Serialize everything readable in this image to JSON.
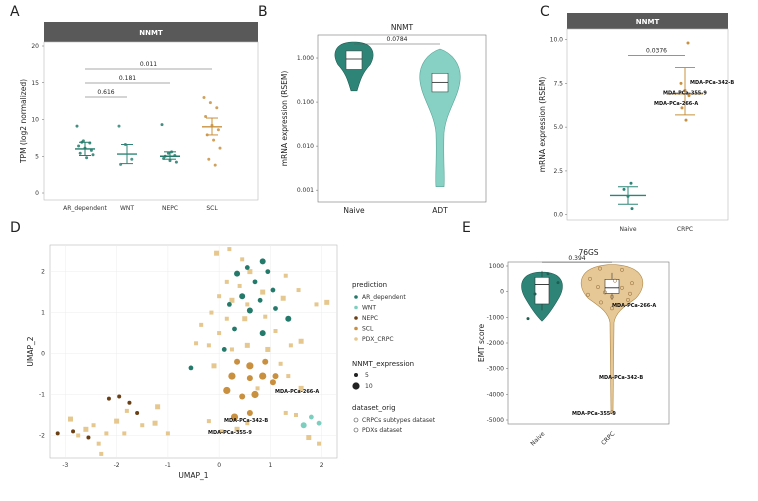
{
  "panels": {
    "A": "A",
    "B": "B",
    "C": "C",
    "D": "D",
    "E": "E"
  },
  "colors": {
    "AR_dependent": "#237a6b",
    "WNT": "#7ccfbe",
    "NEPC": "#6b3f14",
    "SCL": "#c8903f",
    "PDX_CRPC": "#e6c78e",
    "naive": "#2e8577",
    "adt": "#86d1c3",
    "crpc_fill": "#e6c896",
    "strip": "#595959"
  },
  "chart_data": [
    {
      "id": "A",
      "type": "scatter",
      "strip_title": "NNMT",
      "ylabel": "TPM (log2 normalized)",
      "ylim": [
        0,
        20
      ],
      "yticks": [
        "0",
        "5",
        "10",
        "15",
        "20"
      ],
      "categories": [
        "AR_dependent",
        "WNT",
        "NEPC",
        "SCL"
      ],
      "series": [
        {
          "name": "AR_dependent",
          "mean": 6.0,
          "lo": 5.1,
          "hi": 6.9,
          "points": [
            9.1,
            7.1,
            6.8,
            6.4,
            6.1,
            5.8,
            5.4,
            4.8,
            5.2,
            6.9
          ]
        },
        {
          "name": "WNT",
          "mean": 5.3,
          "lo": 4.0,
          "hi": 6.6,
          "points": [
            9.1,
            6.6,
            4.6,
            3.9
          ]
        },
        {
          "name": "NEPC",
          "mean": 5.0,
          "lo": 4.6,
          "hi": 5.6,
          "points": [
            9.3,
            5.4,
            5.1,
            4.7,
            4.4,
            4.2,
            5.0,
            5.6
          ]
        },
        {
          "name": "SCL",
          "mean": 9.0,
          "lo": 7.9,
          "hi": 10.2,
          "points": [
            13.0,
            12.3,
            11.6,
            10.4,
            9.2,
            8.6,
            7.9,
            7.2,
            6.1,
            4.6,
            3.8
          ]
        }
      ],
      "comparisons": [
        {
          "from": "AR_dependent",
          "to": "WNT",
          "p": "0.616"
        },
        {
          "from": "AR_dependent",
          "to": "NEPC",
          "p": "0.181"
        },
        {
          "from": "AR_dependent",
          "to": "SCL",
          "p": "0.011"
        }
      ]
    },
    {
      "id": "B",
      "type": "violin",
      "title": "NNMT",
      "ylabel": "mRNA expression (RSEM)",
      "yscale": "log10",
      "ylim": [
        0.0007,
        3
      ],
      "yticks": [
        "0.001",
        "0.010",
        "0.100",
        "1.000"
      ],
      "categories": [
        "Naive",
        "ADT"
      ],
      "comparisons": [
        {
          "from": "Naive",
          "to": "ADT",
          "p": "0.0784"
        }
      ],
      "box": [
        {
          "q1": 0.55,
          "median": 0.95,
          "q3": 1.45
        },
        {
          "q1": 0.17,
          "median": 0.28,
          "q3": 0.45
        }
      ]
    },
    {
      "id": "C",
      "type": "scatter",
      "strip_title": "NNMT",
      "ylabel": "mRNA expression (RSEM)",
      "ylim": [
        -0.3,
        10.6
      ],
      "yticks": [
        "0.0",
        "2.5",
        "5.0",
        "7.5",
        "10.0"
      ],
      "categories": [
        "Naive",
        "CRPC"
      ],
      "series": [
        {
          "name": "Naive",
          "mean": 1.1,
          "lo": 0.6,
          "hi": 1.6,
          "points": [
            1.8,
            1.45,
            1.05,
            0.35
          ]
        },
        {
          "name": "CRPC",
          "mean": 6.9,
          "lo": 5.7,
          "hi": 8.4,
          "points": [
            9.8,
            7.5,
            7.1,
            6.8,
            6.1,
            5.4
          ]
        }
      ],
      "comparisons": [
        {
          "from": "Naive",
          "to": "CRPC",
          "p": "0.0376"
        }
      ],
      "annotations": [
        "MDA-PCa-342-B",
        "MDA-PCa-355-9",
        "MDA-PCa-266-A"
      ]
    },
    {
      "id": "D",
      "type": "scatter",
      "xlabel": "UMAP_1",
      "ylabel": "UMAP_2",
      "xlim": [
        -3.3,
        2.3
      ],
      "ylim": [
        -2.55,
        2.65
      ],
      "xticks": [
        "-3",
        "-2",
        "-1",
        "0",
        "1",
        "2"
      ],
      "yticks": [
        "-2",
        "-1",
        "0",
        "1",
        "2"
      ],
      "legend_prediction_title": "prediction",
      "legend_size_title": "NNMT_expression",
      "legend_size_values": [
        "5",
        "10"
      ],
      "legend_shape_title": "dataset_orig",
      "legend_shape_entries": [
        "CRPCs subtypes dataset",
        "PDXs dataset"
      ],
      "annotations": [
        "MDA-PCa-266-A",
        "MDA-PCa-342-B",
        "MDA-PCa-355-9"
      ],
      "points": [
        {
          "cls": "AR_dependent",
          "x": 0.85,
          "y": 2.25
        },
        {
          "cls": "AR_dependent",
          "x": 0.55,
          "y": 2.1
        },
        {
          "cls": "AR_dependent",
          "x": 0.95,
          "y": 2.0
        },
        {
          "cls": "AR_dependent",
          "x": 0.35,
          "y": 1.95
        },
        {
          "cls": "AR_dependent",
          "x": 0.7,
          "y": 1.75
        },
        {
          "cls": "AR_dependent",
          "x": 1.05,
          "y": 1.55
        },
        {
          "cls": "AR_dependent",
          "x": 0.45,
          "y": 1.4
        },
        {
          "cls": "AR_dependent",
          "x": 0.8,
          "y": 1.3
        },
        {
          "cls": "AR_dependent",
          "x": 0.2,
          "y": 1.2
        },
        {
          "cls": "AR_dependent",
          "x": 0.6,
          "y": 1.05
        },
        {
          "cls": "AR_dependent",
          "x": 1.1,
          "y": 1.1
        },
        {
          "cls": "AR_dependent",
          "x": 0.3,
          "y": 0.6
        },
        {
          "cls": "AR_dependent",
          "x": 0.85,
          "y": 0.5
        },
        {
          "cls": "AR_dependent",
          "x": 0.1,
          "y": 0.1
        },
        {
          "cls": "AR_dependent",
          "x": -0.55,
          "y": -0.35
        },
        {
          "cls": "AR_dependent",
          "x": 1.35,
          "y": 0.85
        },
        {
          "cls": "WNT",
          "x": 1.8,
          "y": -1.55
        },
        {
          "cls": "WNT",
          "x": 1.95,
          "y": -1.7
        },
        {
          "cls": "WNT",
          "x": 1.65,
          "y": -1.75
        },
        {
          "cls": "NEPC",
          "x": -3.15,
          "y": -1.95
        },
        {
          "cls": "NEPC",
          "x": -2.85,
          "y": -1.9
        },
        {
          "cls": "NEPC",
          "x": -2.55,
          "y": -2.05
        },
        {
          "cls": "NEPC",
          "x": -2.15,
          "y": -1.1
        },
        {
          "cls": "NEPC",
          "x": -1.95,
          "y": -1.05
        },
        {
          "cls": "NEPC",
          "x": -1.75,
          "y": -1.2
        },
        {
          "cls": "NEPC",
          "x": -1.6,
          "y": -1.45
        },
        {
          "cls": "SCL",
          "x": 0.35,
          "y": -0.2
        },
        {
          "cls": "SCL",
          "x": 0.6,
          "y": -0.3
        },
        {
          "cls": "SCL",
          "x": 0.9,
          "y": -0.2
        },
        {
          "cls": "SCL",
          "x": 0.25,
          "y": -0.55
        },
        {
          "cls": "SCL",
          "x": 0.6,
          "y": -0.6
        },
        {
          "cls": "SCL",
          "x": 0.85,
          "y": -0.55
        },
        {
          "cls": "SCL",
          "x": 1.1,
          "y": -0.55
        },
        {
          "cls": "SCL",
          "x": 0.15,
          "y": -0.9
        },
        {
          "cls": "SCL",
          "x": 0.45,
          "y": -1.05
        },
        {
          "cls": "SCL",
          "x": 0.7,
          "y": -1.0
        },
        {
          "cls": "SCL",
          "x": 1.05,
          "y": -0.7
        },
        {
          "cls": "SCL",
          "x": 0.3,
          "y": -1.55
        },
        {
          "cls": "SCL",
          "x": 0.6,
          "y": -1.45
        }
      ],
      "pdx_squares": [
        [
          -0.05,
          2.45
        ],
        [
          0.2,
          2.55
        ],
        [
          0.45,
          2.3
        ],
        [
          0.6,
          2.0
        ],
        [
          0.15,
          1.75
        ],
        [
          0.4,
          1.65
        ],
        [
          0.85,
          1.5
        ],
        [
          1.3,
          1.9
        ],
        [
          0.0,
          1.4
        ],
        [
          0.25,
          1.3
        ],
        [
          0.55,
          1.2
        ],
        [
          0.9,
          0.9
        ],
        [
          1.25,
          1.35
        ],
        [
          1.55,
          1.55
        ],
        [
          1.9,
          1.2
        ],
        [
          2.1,
          1.25
        ],
        [
          -0.15,
          1.0
        ],
        [
          0.15,
          0.85
        ],
        [
          0.5,
          0.85
        ],
        [
          1.1,
          0.55
        ],
        [
          1.4,
          0.2
        ],
        [
          1.6,
          0.3
        ],
        [
          -0.35,
          0.7
        ],
        [
          0.0,
          0.5
        ],
        [
          0.55,
          0.2
        ],
        [
          -0.2,
          0.2
        ],
        [
          -0.45,
          0.25
        ],
        [
          0.95,
          0.1
        ],
        [
          0.25,
          0.1
        ],
        [
          1.2,
          -0.25
        ],
        [
          -0.1,
          -0.3
        ],
        [
          0.75,
          -0.85
        ],
        [
          1.35,
          -0.55
        ],
        [
          1.6,
          -0.85
        ],
        [
          1.3,
          -1.45
        ],
        [
          1.5,
          -1.5
        ],
        [
          1.75,
          -2.05
        ],
        [
          1.95,
          -2.2
        ],
        [
          0.05,
          -1.9
        ],
        [
          0.35,
          -1.85
        ],
        [
          0.55,
          -1.7
        ],
        [
          -0.2,
          -1.65
        ],
        [
          -1.2,
          -1.3
        ],
        [
          -1.5,
          -1.75
        ],
        [
          -1.8,
          -1.4
        ],
        [
          -2.0,
          -1.65
        ],
        [
          -2.2,
          -1.95
        ],
        [
          -2.45,
          -1.75
        ],
        [
          -2.6,
          -1.85
        ],
        [
          -2.35,
          -2.2
        ],
        [
          -2.75,
          -2.0
        ],
        [
          -2.9,
          -1.6
        ],
        [
          -2.3,
          -2.45
        ],
        [
          -1.85,
          -1.95
        ],
        [
          -1.25,
          -1.7
        ],
        [
          -1.0,
          -1.95
        ]
      ]
    },
    {
      "id": "E",
      "type": "violin",
      "title": "76GS",
      "ylabel": "EMT score",
      "ylim": [
        -5000,
        1000
      ],
      "yticks": [
        "1000",
        "0",
        "-1000",
        "-2000",
        "-3000",
        "-4000",
        "-5000"
      ],
      "categories": [
        "Naive",
        "CRPC"
      ],
      "comparisons": [
        {
          "from": "Naive",
          "to": "CRPC",
          "p": "0.394"
        }
      ],
      "box": [
        {
          "q1": -480,
          "median": 280,
          "q3": 560
        },
        {
          "q1": -70,
          "median": 150,
          "q3": 480
        }
      ],
      "annotations": [
        "MDA-PCa-266-A",
        "MDA-PCa-342-B",
        "MDA-PCa-355-9"
      ]
    }
  ]
}
